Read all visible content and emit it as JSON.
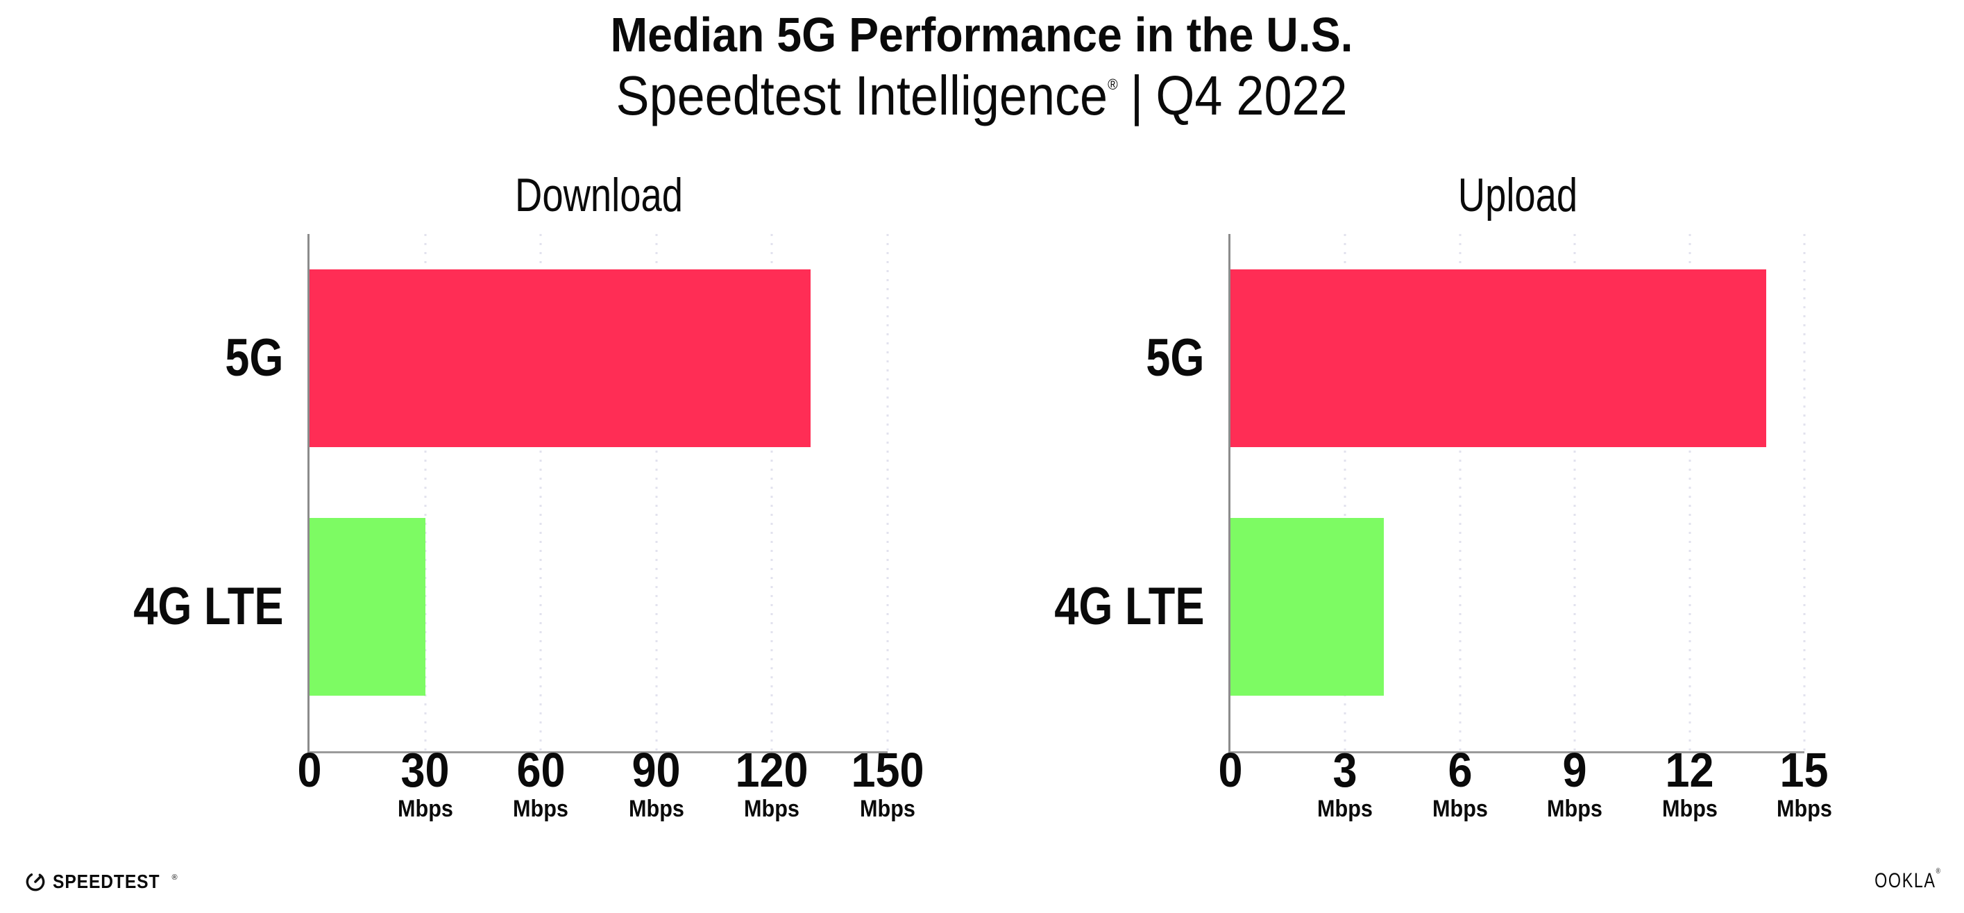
{
  "header": {
    "title": "Median 5G Performance in the U.S.",
    "subtitle": {
      "product": "Speedtest Intelligence",
      "registered_mark": "®",
      "separator": "|",
      "period": "Q4 2022"
    }
  },
  "chart_data": [
    {
      "type": "bar",
      "orientation": "horizontal",
      "title": "Download",
      "categories": [
        "5G",
        "4G LTE"
      ],
      "values": [
        130,
        30
      ],
      "unit": "Mbps",
      "xlabel": "",
      "ylabel": "",
      "xlim": [
        0,
        150
      ],
      "xticks": [
        0,
        30,
        60,
        90,
        120,
        150
      ],
      "grid": "vertical-dotted",
      "legend": "none"
    },
    {
      "type": "bar",
      "orientation": "horizontal",
      "title": "Upload",
      "categories": [
        "5G",
        "4G LTE"
      ],
      "values": [
        14,
        4
      ],
      "unit": "Mbps",
      "xlabel": "",
      "ylabel": "",
      "xlim": [
        0,
        15
      ],
      "xticks": [
        0,
        3,
        6,
        9,
        12,
        15
      ],
      "grid": "vertical-dotted",
      "legend": "none"
    }
  ],
  "colors": {
    "bar_5g": "#FF2D55",
    "bar_4g_lte": "#7DFB63",
    "axis_line": "#8C8C8C",
    "gridline_dots": "#E2E2EE",
    "text": "#0A0A0A",
    "background": "#FFFFFF"
  },
  "footer": {
    "speedtest_logo": "SPEEDTEST",
    "speedtest_mark": "®",
    "ookla_logo": "OOKLA",
    "ookla_mark": "®"
  }
}
